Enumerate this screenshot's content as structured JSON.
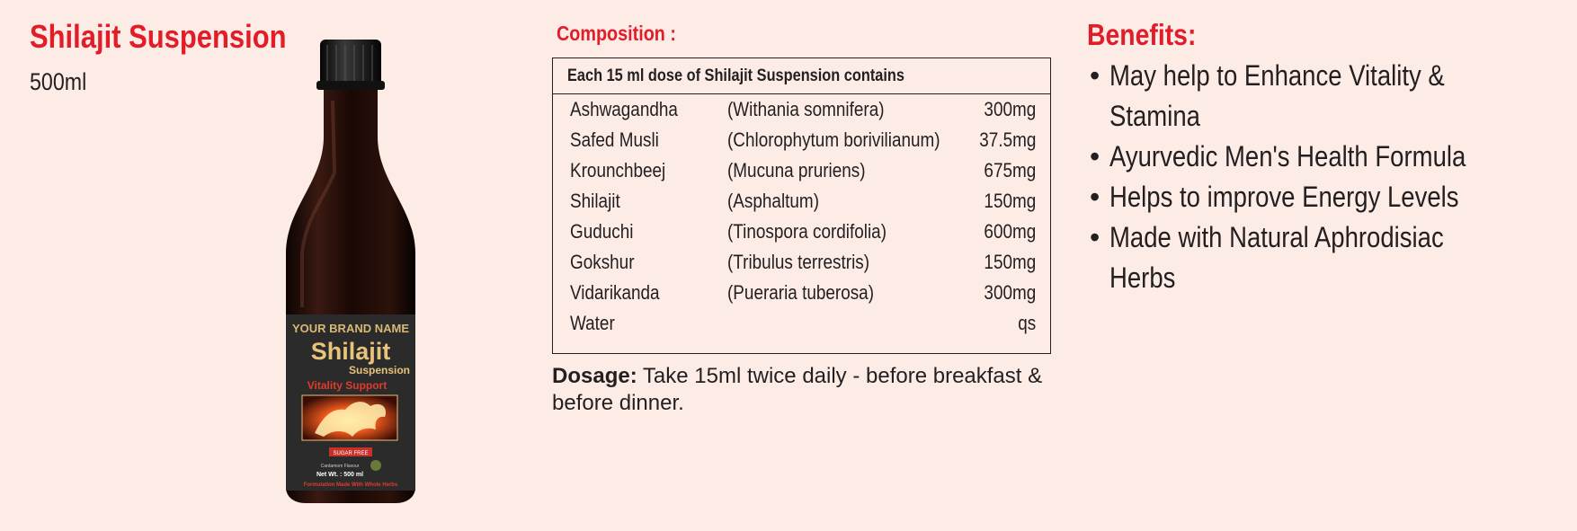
{
  "product": {
    "title": "Shilajit Suspension",
    "volume": "500ml"
  },
  "bottle_label": {
    "brand": "YOUR BRAND NAME",
    "name": "Shilajit",
    "sub": "Suspension",
    "tagline": "Vitality Support",
    "badge": "SUGAR FREE",
    "flavour": "Cardamom Flavour",
    "net_wt": "Net Wt. : 500 ml",
    "footer": "Formulation Made With Whole Herbs"
  },
  "composition": {
    "title": "Composition :",
    "header": "Each 15 ml dose of Shilajit Suspension contains",
    "rows": [
      {
        "name": "Ashwagandha",
        "latin": "(Withania somnifera)",
        "dose": "300mg"
      },
      {
        "name": "Safed Musli",
        "latin": "(Chlorophytum borivilianum)",
        "dose": "37.5mg"
      },
      {
        "name": "Krounchbeej",
        "latin": "(Mucuna pruriens)",
        "dose": "675mg"
      },
      {
        "name": "Shilajit",
        "latin": "(Asphaltum)",
        "dose": "150mg"
      },
      {
        "name": "Guduchi",
        "latin": "(Tinospora cordifolia)",
        "dose": "600mg"
      },
      {
        "name": "Gokshur",
        "latin": "(Tribulus terrestris)",
        "dose": "150mg"
      },
      {
        "name": "Vidarikanda",
        "latin": "(Pueraria tuberosa)",
        "dose": "300mg"
      },
      {
        "name": "Water",
        "latin": "",
        "dose": "qs"
      }
    ]
  },
  "dosage": {
    "label": "Dosage:",
    "text": "Take 15ml twice daily - before breakfast & before dinner."
  },
  "benefits": {
    "title": "Benefits:",
    "items": [
      {
        "line1": "May help to Enhance Vitality &",
        "line2": "Stamina"
      },
      {
        "line1": "Ayurvedic Men's Health Formula",
        "line2": ""
      },
      {
        "line1": "Helps to improve Energy Levels",
        "line2": ""
      },
      {
        "line1": "Made with Natural Aphrodisiac",
        "line2": "Herbs"
      }
    ]
  },
  "colors": {
    "background": "#fdece6",
    "accent_red": "#e11d2a",
    "text": "#231f20"
  }
}
